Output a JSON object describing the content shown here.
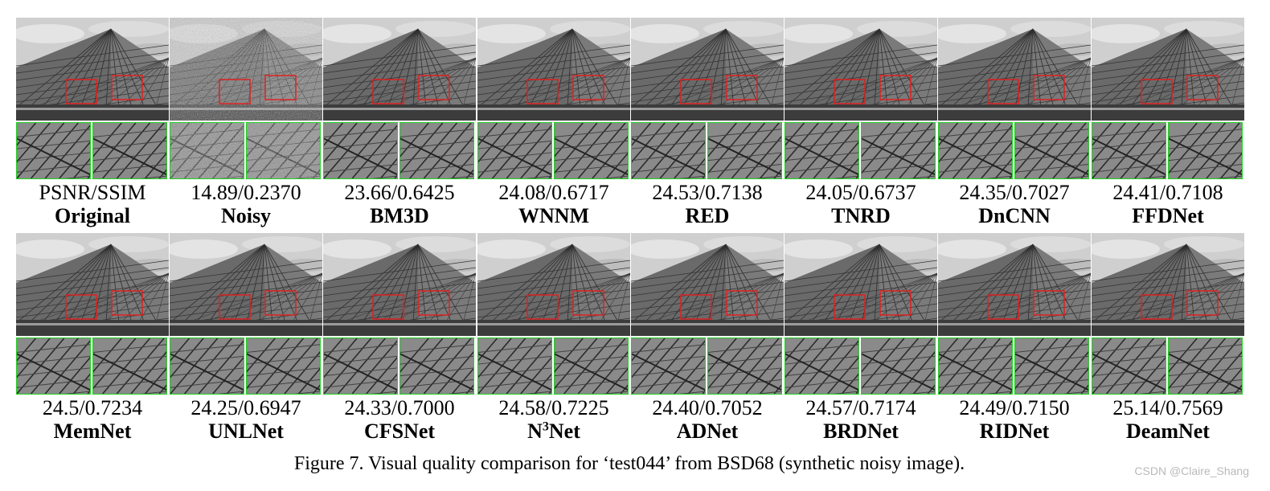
{
  "figure": {
    "caption": "Figure 7. Visual quality comparison for ‘test044’ from BSD68 (synthetic noisy image).",
    "watermark": "CSDN @Claire_Shang",
    "row1": [
      {
        "score": "PSNR/SSIM",
        "method": "Original",
        "noisy": false
      },
      {
        "score": "14.89/0.2370",
        "method": "Noisy",
        "noisy": true
      },
      {
        "score": "23.66/0.6425",
        "method": "BM3D",
        "noisy": false
      },
      {
        "score": "24.08/0.6717",
        "method": "WNNM",
        "noisy": false
      },
      {
        "score": "24.53/0.7138",
        "method": "RED",
        "noisy": false
      },
      {
        "score": "24.05/0.6737",
        "method": "TNRD",
        "noisy": false
      },
      {
        "score": "24.35/0.7027",
        "method": "DnCNN",
        "noisy": false
      },
      {
        "score": "24.41/0.7108",
        "method": "FFDNet",
        "noisy": false
      }
    ],
    "row2": [
      {
        "score": "24.5/0.7234",
        "method": "MemNet",
        "noisy": false
      },
      {
        "score": "24.25/0.6947",
        "method": "UNLNet",
        "noisy": false
      },
      {
        "score": "24.33/0.7000",
        "method": "CFSNet",
        "noisy": false
      },
      {
        "score": "24.58/0.7225",
        "method": "N",
        "method_sup": "3",
        "method_suffix": "Net",
        "noisy": false
      },
      {
        "score": "24.40/0.7052",
        "method": "ADNet",
        "noisy": false
      },
      {
        "score": "24.57/0.7174",
        "method": "BRDNet",
        "noisy": false
      },
      {
        "score": "24.49/0.7150",
        "method": "RIDNet",
        "noisy": false
      },
      {
        "score": "25.14/0.7569",
        "method": "DeamNet",
        "noisy": false
      }
    ]
  }
}
